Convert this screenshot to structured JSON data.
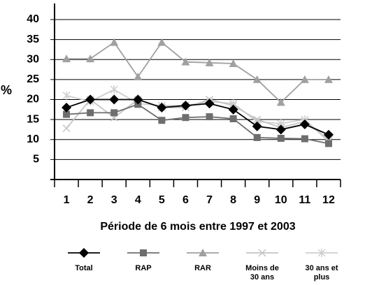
{
  "chart_data": {
    "type": "line",
    "y_label": "%",
    "x_label": "Période de 6 mois entre 1997 et 2003",
    "categories": [
      "1",
      "2",
      "3",
      "4",
      "5",
      "6",
      "7",
      "8",
      "9",
      "10",
      "11",
      "12"
    ],
    "ylim": [
      0,
      40
    ],
    "yticks": [
      5,
      10,
      15,
      20,
      25,
      30,
      35,
      40
    ],
    "grid": true,
    "legend": "bottom",
    "series": [
      {
        "name": "Total",
        "color": "#000000",
        "marker": "diamond",
        "values": [
          18,
          20,
          20,
          20,
          18,
          18.5,
          19,
          17.5,
          13.3,
          12.5,
          13.8,
          11.2
        ]
      },
      {
        "name": "RAP",
        "color": "#6e6e6e",
        "marker": "square",
        "values": [
          16.3,
          16.7,
          16.7,
          18.8,
          14.8,
          15.5,
          15.7,
          15.2,
          10.5,
          10.3,
          10.2,
          9
        ]
      },
      {
        "name": "RAR",
        "color": "#a0a0a0",
        "marker": "triangle",
        "values": [
          30.2,
          30.2,
          34.3,
          25.7,
          34.3,
          29.4,
          29.2,
          29,
          25,
          19.3,
          25,
          25
        ]
      },
      {
        "name": "Moins de 30 ans",
        "color": "#c4c4c4",
        "marker": "x",
        "values": [
          12.8,
          20,
          15.5,
          20,
          18,
          18,
          20,
          18.5,
          15,
          13,
          14.5,
          10
        ]
      },
      {
        "name": "30 ans et plus",
        "color": "#cfcfcf",
        "marker": "star",
        "values": [
          21,
          19.5,
          22.5,
          19,
          18.5,
          18.5,
          19.5,
          19,
          14.5,
          14,
          15,
          9.5
        ]
      }
    ]
  }
}
